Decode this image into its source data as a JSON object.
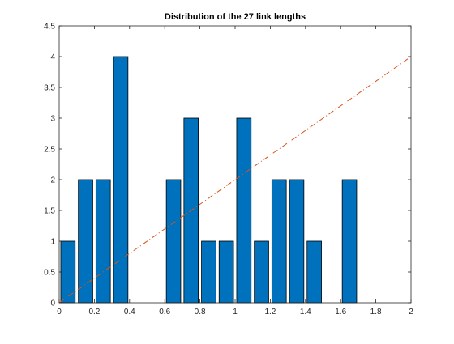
{
  "chart_data": {
    "type": "bar",
    "title": "Distribution of the 27 link lengths",
    "xlabel": "",
    "ylabel": "",
    "xlim": [
      0,
      2
    ],
    "ylim": [
      0,
      4.5
    ],
    "x_ticks": [
      "0",
      "0.2",
      "0.4",
      "0.6",
      "0.8",
      "1",
      "1.2",
      "1.4",
      "1.6",
      "1.8",
      "2"
    ],
    "y_ticks": [
      "0",
      "0.5",
      "1",
      "1.5",
      "2",
      "2.5",
      "3",
      "3.5",
      "4",
      "4.5"
    ],
    "grid": false,
    "bin_width": 0.1,
    "bars": [
      {
        "x": 0.05,
        "value": 1
      },
      {
        "x": 0.15,
        "value": 2
      },
      {
        "x": 0.25,
        "value": 2
      },
      {
        "x": 0.35,
        "value": 4
      },
      {
        "x": 0.65,
        "value": 2
      },
      {
        "x": 0.75,
        "value": 3
      },
      {
        "x": 0.85,
        "value": 1
      },
      {
        "x": 0.95,
        "value": 1
      },
      {
        "x": 1.05,
        "value": 3
      },
      {
        "x": 1.15,
        "value": 1
      },
      {
        "x": 1.25,
        "value": 2
      },
      {
        "x": 1.35,
        "value": 2
      },
      {
        "x": 1.45,
        "value": 1
      },
      {
        "x": 1.65,
        "value": 2
      }
    ],
    "reference_line": {
      "x": [
        0,
        2
      ],
      "y": [
        0,
        4
      ],
      "style": "dash-dot"
    },
    "colors": {
      "bar_fill": "#0072BD",
      "bar_edge": "#000000",
      "line": "#D95319",
      "axes": "#262626"
    }
  }
}
